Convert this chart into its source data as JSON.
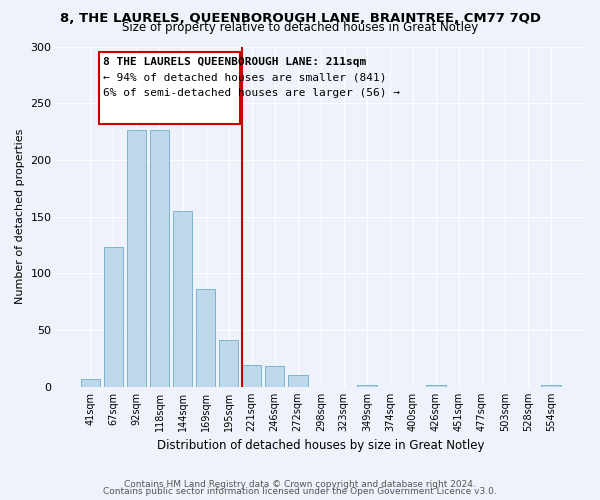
{
  "title_line1": "8, THE LAURELS, QUEENBOROUGH LANE, BRAINTREE, CM77 7QD",
  "title_line2": "Size of property relative to detached houses in Great Notley",
  "xlabel": "Distribution of detached houses by size in Great Notley",
  "ylabel": "Number of detached properties",
  "bins": [
    "41sqm",
    "67sqm",
    "92sqm",
    "118sqm",
    "144sqm",
    "169sqm",
    "195sqm",
    "221sqm",
    "246sqm",
    "272sqm",
    "298sqm",
    "323sqm",
    "349sqm",
    "374sqm",
    "400sqm",
    "426sqm",
    "451sqm",
    "477sqm",
    "503sqm",
    "528sqm",
    "554sqm"
  ],
  "values": [
    7,
    123,
    226,
    226,
    155,
    86,
    41,
    19,
    18,
    10,
    0,
    0,
    2,
    0,
    0,
    2,
    0,
    0,
    0,
    0,
    2
  ],
  "bar_color": "#bcd8ea",
  "bar_edge_color": "#7fb3d0",
  "highlight_bin_index": 7,
  "vline_color": "#cc0000",
  "annotation_title": "8 THE LAURELS QUEENBOROUGH LANE: 211sqm",
  "annotation_line1": "← 94% of detached houses are smaller (841)",
  "annotation_line2": "6% of semi-detached houses are larger (56) →",
  "annotation_box_color": "#ffffff",
  "annotation_box_edge": "#cc0000",
  "ylim": [
    0,
    300
  ],
  "yticks": [
    0,
    50,
    100,
    150,
    200,
    250,
    300
  ],
  "footer_line1": "Contains HM Land Registry data © Crown copyright and database right 2024.",
  "footer_line2": "Contains public sector information licensed under the Open Government Licence v3.0.",
  "background_color": "#eef2fa"
}
